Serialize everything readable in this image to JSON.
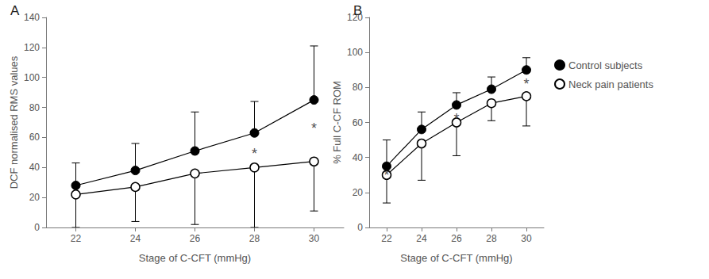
{
  "chart_data": [
    {
      "type": "line",
      "title": "A",
      "xlabel": "Stage of C-CFT (mmHg)",
      "ylabel": "DCF normalised RMS values",
      "categories": [
        "22",
        "24",
        "26",
        "28",
        "30"
      ],
      "ylim": [
        0,
        140
      ],
      "yticks": [
        0,
        20,
        40,
        60,
        80,
        100,
        120,
        140
      ],
      "series": [
        {
          "name": "Control subjects",
          "color": "#000000",
          "marker": "filled_circle",
          "values": [
            28,
            38,
            51,
            63,
            85
          ],
          "error_plus": [
            15,
            18,
            26,
            21,
            36
          ]
        },
        {
          "name": "Neck pain patients",
          "color": "#000000",
          "marker": "open_circle",
          "values": [
            22,
            27,
            36,
            40,
            44
          ],
          "error_minus": [
            22,
            23,
            34,
            40,
            33
          ]
        }
      ],
      "annotations": [
        {
          "text": "*",
          "x": "28",
          "y": 49
        },
        {
          "text": "*",
          "x": "30",
          "y": 66
        }
      ]
    },
    {
      "type": "line",
      "title": "B",
      "xlabel": "Stage of C-CFT (mmHg)",
      "ylabel": "% Full C-CF ROM",
      "categories": [
        "22",
        "24",
        "26",
        "28",
        "30"
      ],
      "ylim": [
        0,
        120
      ],
      "yticks": [
        0,
        20,
        40,
        60,
        80,
        100,
        120
      ],
      "legend": "right",
      "series": [
        {
          "name": "Control subjects",
          "color": "#000000",
          "marker": "filled_circle",
          "values": [
            35,
            56,
            70,
            79,
            90
          ],
          "error_plus": [
            15,
            10,
            7,
            7,
            7
          ]
        },
        {
          "name": "Neck pain patients",
          "color": "#000000",
          "marker": "open_circle",
          "values": [
            30,
            48,
            60,
            71,
            75
          ],
          "error_minus": [
            16,
            21,
            19,
            10,
            17
          ]
        }
      ],
      "annotations": [
        {
          "text": "*",
          "x": "22",
          "y": 30
        },
        {
          "text": "*",
          "x": "26",
          "y": 62
        },
        {
          "text": "*",
          "x": "30",
          "y": 82
        }
      ]
    }
  ]
}
